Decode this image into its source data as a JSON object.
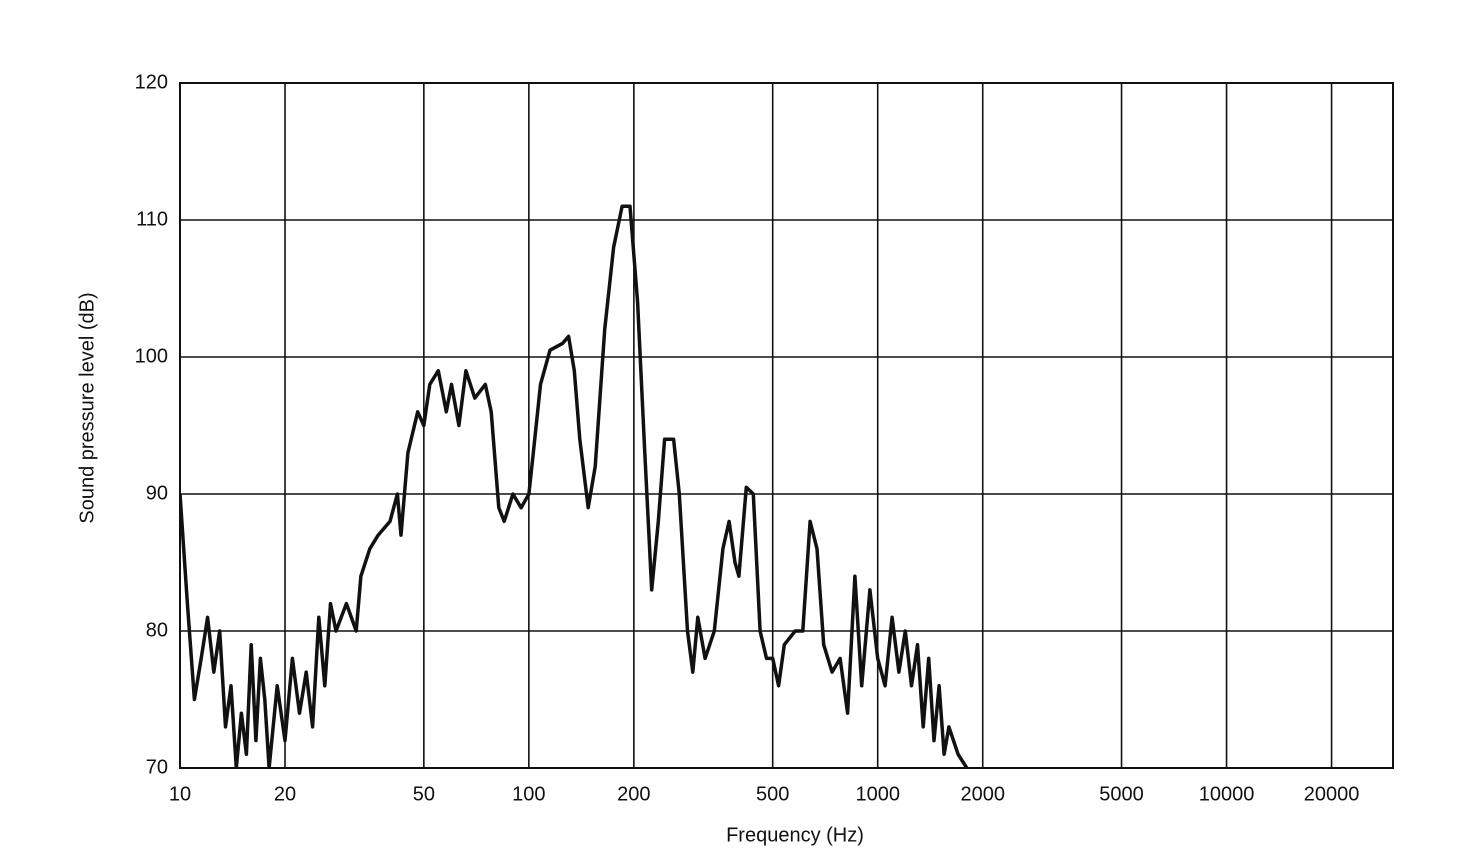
{
  "chart_data": {
    "type": "line",
    "xlabel": "Frequency (Hz)",
    "ylabel": "Sound pressure level (dB)",
    "xscale": "log",
    "xlim": [
      10,
      30000
    ],
    "ylim": [
      70,
      120
    ],
    "xticks": [
      10,
      20,
      50,
      100,
      200,
      500,
      1000,
      2000,
      5000,
      10000,
      20000
    ],
    "yticks": [
      70,
      80,
      90,
      100,
      110,
      120
    ],
    "grid": true,
    "series": [
      {
        "color": "#111111",
        "x": [
          10,
          10.5,
          11,
          11.5,
          12,
          12.5,
          13,
          13.5,
          14,
          14.5,
          15,
          15.5,
          16,
          16.5,
          17,
          17.5,
          18,
          19,
          20,
          21,
          22,
          23,
          24,
          25,
          26,
          27,
          28,
          30,
          32,
          33,
          35,
          37,
          40,
          42,
          43,
          45,
          48,
          50,
          52,
          55,
          58,
          60,
          63,
          66,
          70,
          75,
          78,
          82,
          85,
          90,
          95,
          100,
          103,
          108,
          115,
          125,
          130,
          135,
          140,
          148,
          155,
          165,
          175,
          185,
          195,
          205,
          215,
          225,
          235,
          245,
          260,
          270,
          285,
          295,
          305,
          320,
          340,
          360,
          375,
          390,
          400,
          420,
          440,
          460,
          480,
          500,
          520,
          540,
          580,
          610,
          640,
          670,
          700,
          740,
          780,
          820,
          860,
          900,
          950,
          1000,
          1050,
          1100,
          1150,
          1200,
          1250,
          1300,
          1350,
          1400,
          1450,
          1500,
          1550,
          1600,
          1700,
          1800
        ],
        "values": [
          90,
          82,
          75,
          78,
          81,
          77,
          80,
          73,
          76,
          70,
          74,
          71,
          79,
          72,
          78,
          75,
          70,
          76,
          72,
          78,
          74,
          77,
          73,
          81,
          76,
          82,
          80,
          82,
          80,
          84,
          86,
          87,
          88,
          90,
          87,
          93,
          96,
          95,
          98,
          99,
          96,
          98,
          95,
          99,
          97,
          98,
          96,
          89,
          88,
          90,
          89,
          90,
          93,
          98,
          100.5,
          101,
          101.5,
          99,
          94,
          89,
          92,
          102,
          108,
          111,
          111,
          104,
          93,
          83,
          88,
          94,
          94,
          90,
          80,
          77,
          81,
          78,
          80,
          86,
          88,
          85,
          84,
          90.5,
          90,
          80,
          78,
          78,
          76,
          79,
          80,
          80,
          88,
          86,
          79,
          77,
          78,
          74,
          84,
          76,
          83,
          78,
          76,
          81,
          77,
          80,
          76,
          79,
          73,
          78,
          72,
          76,
          71,
          73,
          71,
          70
        ]
      }
    ]
  }
}
